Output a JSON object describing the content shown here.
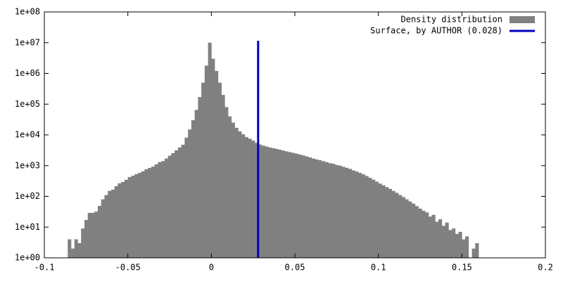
{
  "chart_data": {
    "type": "histogram",
    "bins": [
      -0.086,
      -0.084,
      -0.082,
      -0.08,
      -0.078,
      -0.076,
      -0.074,
      -0.072,
      -0.07,
      -0.068,
      -0.066,
      -0.064,
      -0.062,
      -0.06,
      -0.058,
      -0.056,
      -0.054,
      -0.052,
      -0.05,
      -0.048,
      -0.046,
      -0.044,
      -0.042,
      -0.04,
      -0.038,
      -0.036,
      -0.034,
      -0.032,
      -0.03,
      -0.028,
      -0.026,
      -0.024,
      -0.022,
      -0.02,
      -0.018,
      -0.016,
      -0.014,
      -0.012,
      -0.01,
      -0.008,
      -0.006,
      -0.004,
      -0.002,
      0.0,
      0.002,
      0.004,
      0.006,
      0.008,
      0.01,
      0.012,
      0.014,
      0.016,
      0.018,
      0.02,
      0.022,
      0.024,
      0.026,
      0.028,
      0.03,
      0.032,
      0.034,
      0.036,
      0.038,
      0.04,
      0.042,
      0.044,
      0.046,
      0.048,
      0.05,
      0.052,
      0.054,
      0.056,
      0.058,
      0.06,
      0.062,
      0.064,
      0.066,
      0.068,
      0.07,
      0.072,
      0.074,
      0.076,
      0.078,
      0.08,
      0.082,
      0.084,
      0.086,
      0.088,
      0.09,
      0.092,
      0.094,
      0.096,
      0.098,
      0.1,
      0.102,
      0.104,
      0.106,
      0.108,
      0.11,
      0.112,
      0.114,
      0.116,
      0.118,
      0.12,
      0.122,
      0.124,
      0.126,
      0.128,
      0.13,
      0.132,
      0.134,
      0.136,
      0.138,
      0.14,
      0.142,
      0.144,
      0.146,
      0.148,
      0.15,
      0.152,
      0.154,
      0.156,
      0.158,
      0.16
    ],
    "series": [
      {
        "name": "Density distribution",
        "color": "#808080",
        "values": [
          4,
          2,
          4,
          3,
          9,
          17,
          29,
          29,
          32,
          49,
          80,
          110,
          150,
          165,
          215,
          265,
          295,
          345,
          425,
          470,
          525,
          580,
          650,
          760,
          840,
          930,
          1100,
          1300,
          1400,
          1700,
          2100,
          2550,
          3150,
          3900,
          4800,
          8100,
          15000,
          30000,
          65000,
          170000,
          500000,
          1800000,
          10000000,
          3000000,
          1200000,
          500000,
          200000,
          80000,
          40000,
          25000,
          17000,
          13000,
          10500,
          8500,
          7500,
          6500,
          5500,
          4900,
          4500,
          4200,
          3900,
          3700,
          3500,
          3300,
          3100,
          2900,
          2750,
          2600,
          2450,
          2300,
          2150,
          2000,
          1850,
          1700,
          1600,
          1500,
          1400,
          1300,
          1200,
          1150,
          1050,
          1000,
          920,
          850,
          780,
          700,
          640,
          580,
          520,
          460,
          400,
          350,
          300,
          260,
          230,
          200,
          175,
          150,
          130,
          110,
          95,
          80,
          68,
          58,
          48,
          40,
          34,
          30,
          22,
          25,
          15,
          18,
          11,
          14,
          8,
          9,
          6,
          7,
          4,
          5,
          1,
          2,
          3
        ]
      }
    ],
    "marker_line": {
      "name": "Surface, by AUTHOR (0.028)",
      "color": "#0000c0",
      "x": 0.028
    },
    "xlim": [
      -0.1,
      0.2
    ],
    "ylim": [
      1,
      100000000
    ],
    "log_y": true,
    "xticks": [
      -0.1,
      -0.05,
      0,
      0.05,
      0.1,
      0.15,
      0.2
    ],
    "yticks": [
      {
        "value": 1,
        "label": "1e+00"
      },
      {
        "value": 10,
        "label": "1e+01"
      },
      {
        "value": 100,
        "label": "1e+02"
      },
      {
        "value": 1000,
        "label": "1e+03"
      },
      {
        "value": 10000,
        "label": "1e+04"
      },
      {
        "value": 100000,
        "label": "1e+05"
      },
      {
        "value": 1000000,
        "label": "1e+06"
      },
      {
        "value": 10000000,
        "label": "1e+07"
      },
      {
        "value": 100000000,
        "label": "1e+08"
      }
    ],
    "legend": "top-right"
  }
}
